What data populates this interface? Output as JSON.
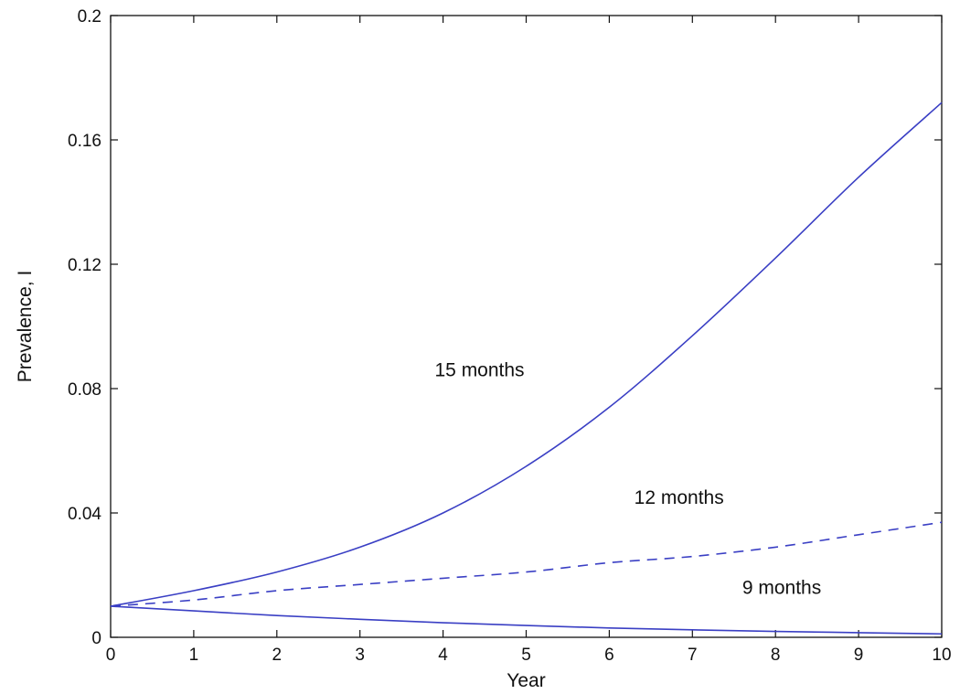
{
  "chart_data": {
    "type": "line",
    "xlabel": "Year",
    "ylabel": "Prevalence, I",
    "xlim": [
      0,
      10
    ],
    "ylim": [
      0,
      0.2
    ],
    "xticks": [
      "0",
      "1",
      "2",
      "3",
      "4",
      "5",
      "6",
      "7",
      "8",
      "9",
      "10"
    ],
    "yticks": [
      "0",
      "0.04",
      "0.08",
      "0.12",
      "0.16",
      "0.2"
    ],
    "grid": false,
    "line_color": "#3a3fc4",
    "x": [
      0,
      1,
      2,
      3,
      4,
      5,
      6,
      7,
      8,
      9,
      10
    ],
    "series": [
      {
        "name": "15 months",
        "style": "solid",
        "values": [
          0.01,
          0.015,
          0.021,
          0.029,
          0.04,
          0.055,
          0.074,
          0.097,
          0.122,
          0.148,
          0.172
        ]
      },
      {
        "name": "12 months",
        "style": "dashed",
        "values": [
          0.01,
          0.012,
          0.015,
          0.017,
          0.019,
          0.021,
          0.024,
          0.026,
          0.029,
          0.033,
          0.037
        ]
      },
      {
        "name": "9 months",
        "style": "solid",
        "values": [
          0.01,
          0.0085,
          0.007,
          0.0058,
          0.0047,
          0.0038,
          0.003,
          0.0024,
          0.0019,
          0.0015,
          0.0011
        ]
      }
    ],
    "annotations": [
      {
        "text": "15 months",
        "x": 3.9,
        "y": 0.084
      },
      {
        "text": "12 months",
        "x": 6.3,
        "y": 0.043
      },
      {
        "text": "9 months",
        "x": 7.6,
        "y": 0.014
      }
    ]
  }
}
